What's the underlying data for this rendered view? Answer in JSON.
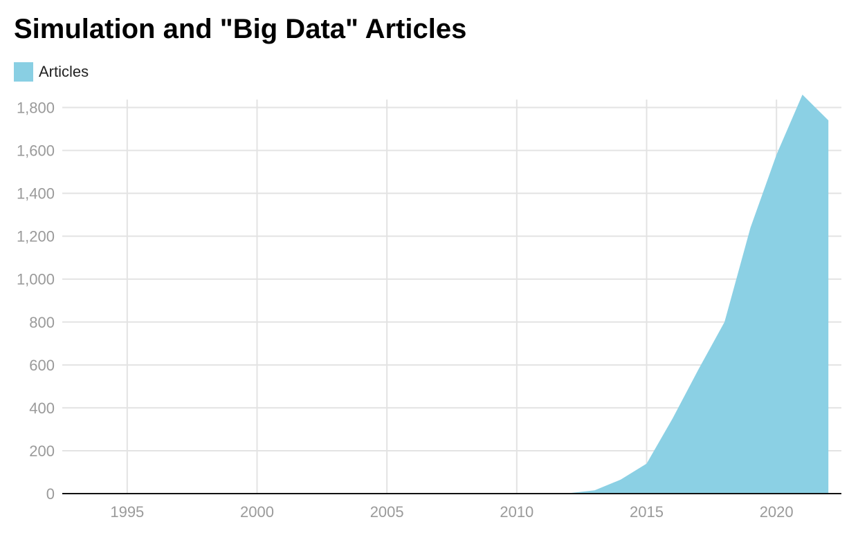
{
  "chart_data": {
    "type": "area",
    "title": "Simulation and \"Big Data\" Articles",
    "xlabel": "",
    "ylabel": "",
    "legend": {
      "placement": "top-left",
      "entries": [
        "Articles"
      ]
    },
    "grid": true,
    "xlim": [
      1992.5,
      2022.5
    ],
    "ylim": [
      0,
      1850
    ],
    "x_ticks": [
      1995,
      2000,
      2005,
      2010,
      2015,
      2020
    ],
    "y_ticks": [
      0,
      200,
      400,
      600,
      800,
      1000,
      1200,
      1400,
      1600,
      1800
    ],
    "x_tick_labels": [
      "1995",
      "2000",
      "2005",
      "2010",
      "2015",
      "2020"
    ],
    "y_tick_labels": [
      "0",
      "200",
      "400",
      "600",
      "800",
      "1,000",
      "1,200",
      "1,400",
      "1,600",
      "1,800"
    ],
    "series": [
      {
        "name": "Articles",
        "color": "#89cfe3",
        "x": [
          1993,
          1994,
          1995,
          1996,
          1997,
          1998,
          1999,
          2000,
          2001,
          2002,
          2003,
          2004,
          2005,
          2006,
          2007,
          2008,
          2009,
          2010,
          2011,
          2012,
          2013,
          2014,
          2015,
          2016,
          2017,
          2018,
          2019,
          2020,
          2021,
          2022
        ],
        "values": [
          0,
          0,
          0,
          0,
          0,
          0,
          0,
          0,
          0,
          0,
          0,
          0,
          0,
          0,
          0,
          0,
          0,
          0,
          0,
          2,
          15,
          65,
          140,
          350,
          580,
          800,
          1240,
          1580,
          1860,
          1740
        ]
      }
    ]
  }
}
